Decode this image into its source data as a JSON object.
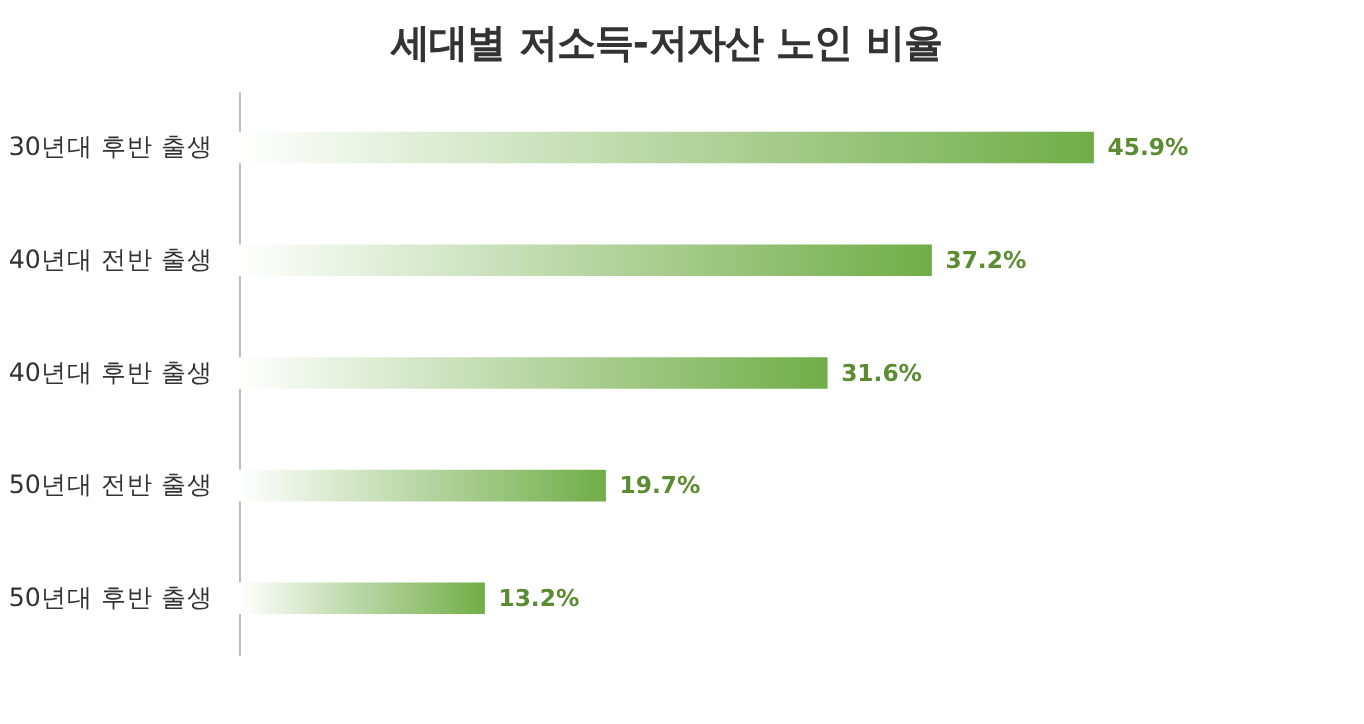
{
  "chart_data": {
    "type": "bar",
    "orientation": "horizontal",
    "title": "세대별 저소득-저자산 노인 비율",
    "categories": [
      "30년대 후반 출생",
      "40년대 전반 출생",
      "40년대 후반 출생",
      "50년대 전반 출생",
      "50년대 후반 출생"
    ],
    "values": [
      45.9,
      37.2,
      31.6,
      19.7,
      13.2
    ],
    "value_labels": [
      "45.9%",
      "37.2%",
      "31.6%",
      "19.7%",
      "13.2%"
    ],
    "color": "#70ad47",
    "grid": false
  }
}
